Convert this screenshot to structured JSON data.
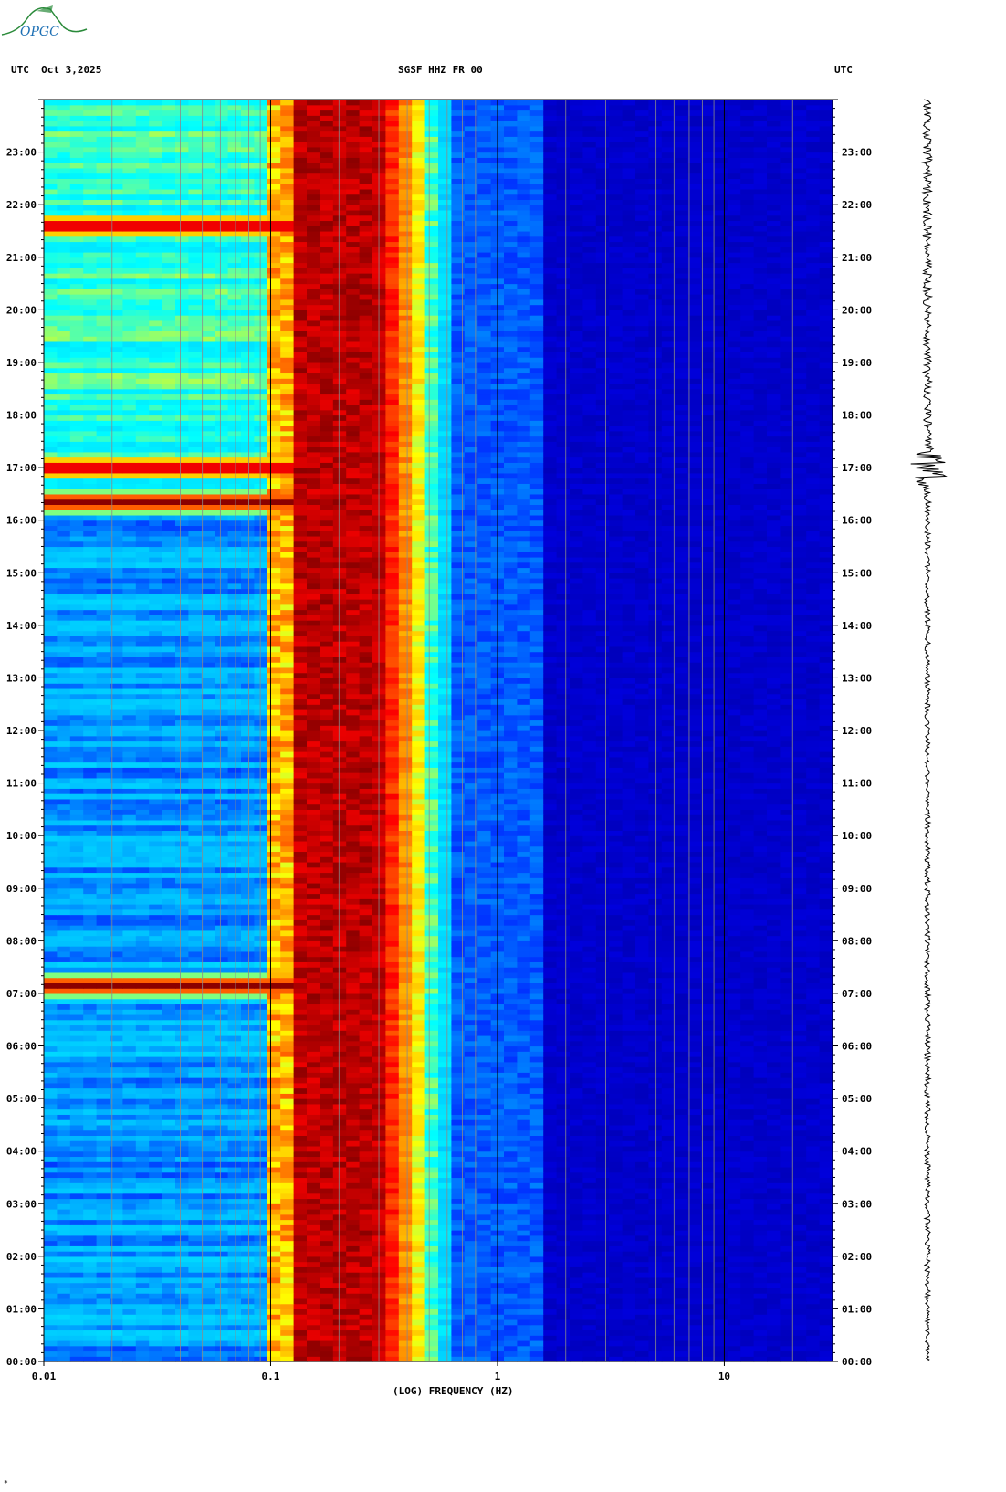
{
  "logo": {
    "text": "OPGC"
  },
  "header": {
    "left_label": "UTC  Oct 3,2025",
    "center_label": "SGSF HHZ FR 00",
    "right_label": "UTC"
  },
  "chart_data": {
    "type": "heatmap",
    "title": "SGSF HHZ FR 00",
    "date": "Oct 3,2025",
    "xlabel": "(LOG) FREQUENCY (HZ)",
    "x_scale": "log",
    "xlim": [
      0.01,
      30
    ],
    "x_ticks": [
      "0.01",
      "0.1",
      "1",
      "10"
    ],
    "ylabel": "UTC",
    "ylim_hours": [
      0,
      24
    ],
    "y_ticks": [
      "00:00",
      "01:00",
      "02:00",
      "03:00",
      "04:00",
      "05:00",
      "06:00",
      "07:00",
      "08:00",
      "09:00",
      "10:00",
      "11:00",
      "12:00",
      "13:00",
      "14:00",
      "15:00",
      "16:00",
      "17:00",
      "18:00",
      "19:00",
      "20:00",
      "21:00",
      "22:00",
      "23:00"
    ],
    "colormap": [
      "#00008b",
      "#0000ff",
      "#00bfff",
      "#00ffff",
      "#ffff00",
      "#ff7f00",
      "#ff0000",
      "#8b0000"
    ],
    "microseism_band_hz": [
      0.12,
      0.3
    ],
    "events": [
      {
        "time_hours": 16.35,
        "label": ""
      },
      {
        "time_hours": 17.0,
        "label": ""
      },
      {
        "time_hours": 21.6,
        "label": ""
      },
      {
        "time_hours": 7.15,
        "label": ""
      }
    ],
    "seismogram_event_hours": 17.0
  },
  "footer": {
    "mark": "*"
  }
}
